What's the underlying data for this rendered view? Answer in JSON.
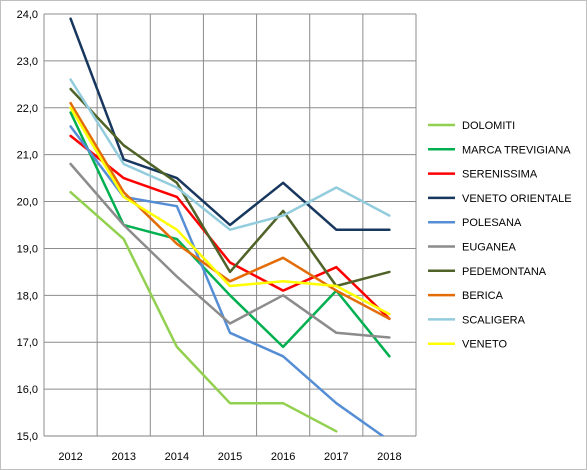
{
  "chart_data": {
    "type": "line",
    "title": "",
    "xlabel": "",
    "ylabel": "",
    "x": [
      "2012",
      "2013",
      "2014",
      "2015",
      "2016",
      "2017",
      "2018"
    ],
    "ylim": [
      15,
      24
    ],
    "y_ticks": [
      "15,0",
      "16,0",
      "17,0",
      "18,0",
      "19,0",
      "20,0",
      "21,0",
      "22,0",
      "23,0",
      "24,0"
    ],
    "grid": "horizontal",
    "legend_position": "right",
    "series": [
      {
        "name": "DOLOMITI",
        "color": "#92d050",
        "values": [
          20.2,
          19.2,
          16.9,
          15.7,
          15.7,
          15.1,
          null
        ]
      },
      {
        "name": "MARCA TREVIGIANA",
        "color": "#00b050",
        "values": [
          21.9,
          19.5,
          19.2,
          18.0,
          16.9,
          18.1,
          16.7
        ]
      },
      {
        "name": "SERENISSIMA",
        "color": "#ff0000",
        "values": [
          21.4,
          20.5,
          20.1,
          18.7,
          18.1,
          18.6,
          17.5
        ]
      },
      {
        "name": "VENETO ORIENTALE",
        "color": "#17375e",
        "values": [
          23.9,
          20.9,
          20.5,
          19.5,
          20.4,
          19.4,
          19.4
        ]
      },
      {
        "name": "POLESANA",
        "color": "#558ed5",
        "values": [
          21.6,
          20.1,
          19.9,
          17.2,
          16.7,
          15.7,
          14.9
        ]
      },
      {
        "name": "EUGANEA",
        "color": "#8c8c8c",
        "values": [
          20.8,
          19.5,
          18.4,
          17.4,
          18.0,
          17.2,
          17.1
        ]
      },
      {
        "name": "PEDEMONTANA",
        "color": "#4f6228",
        "values": [
          22.4,
          21.2,
          20.4,
          18.5,
          19.8,
          18.2,
          18.5
        ]
      },
      {
        "name": "BERICA",
        "color": "#e36c09",
        "values": [
          22.1,
          20.2,
          19.1,
          18.3,
          18.8,
          18.1,
          17.5
        ]
      },
      {
        "name": "SCALIGERA",
        "color": "#93cddd",
        "values": [
          22.6,
          20.8,
          20.3,
          19.4,
          19.7,
          20.3,
          19.7
        ]
      },
      {
        "name": "VENETO",
        "color": "#ffff00",
        "values": [
          22.0,
          20.1,
          19.4,
          18.2,
          18.3,
          18.2,
          17.6
        ]
      }
    ]
  }
}
